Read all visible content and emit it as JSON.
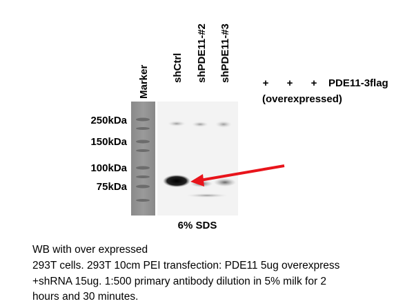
{
  "lanes": {
    "marker": "Marker",
    "samples": [
      "shCtrl",
      "shPDE11-#2",
      "shPDE11-#3"
    ]
  },
  "markers": [
    "250kDa",
    "150kDa",
    "100kDa",
    "75kDa"
  ],
  "overexpression": {
    "signs": [
      "+",
      "+",
      "+"
    ],
    "label": "PDE11-3flag",
    "note": "(overexpressed)"
  },
  "gel": "6% SDS",
  "caption": {
    "title": "WB with over expressed",
    "lines": [
      "293T cells. 293T 10cm PEI transfection: PDE11 5ug overexpress",
      "+shRNA 15ug. 1:500 primary antibody dilution in 5% milk for 2",
      "hours and 30 minutes."
    ]
  }
}
